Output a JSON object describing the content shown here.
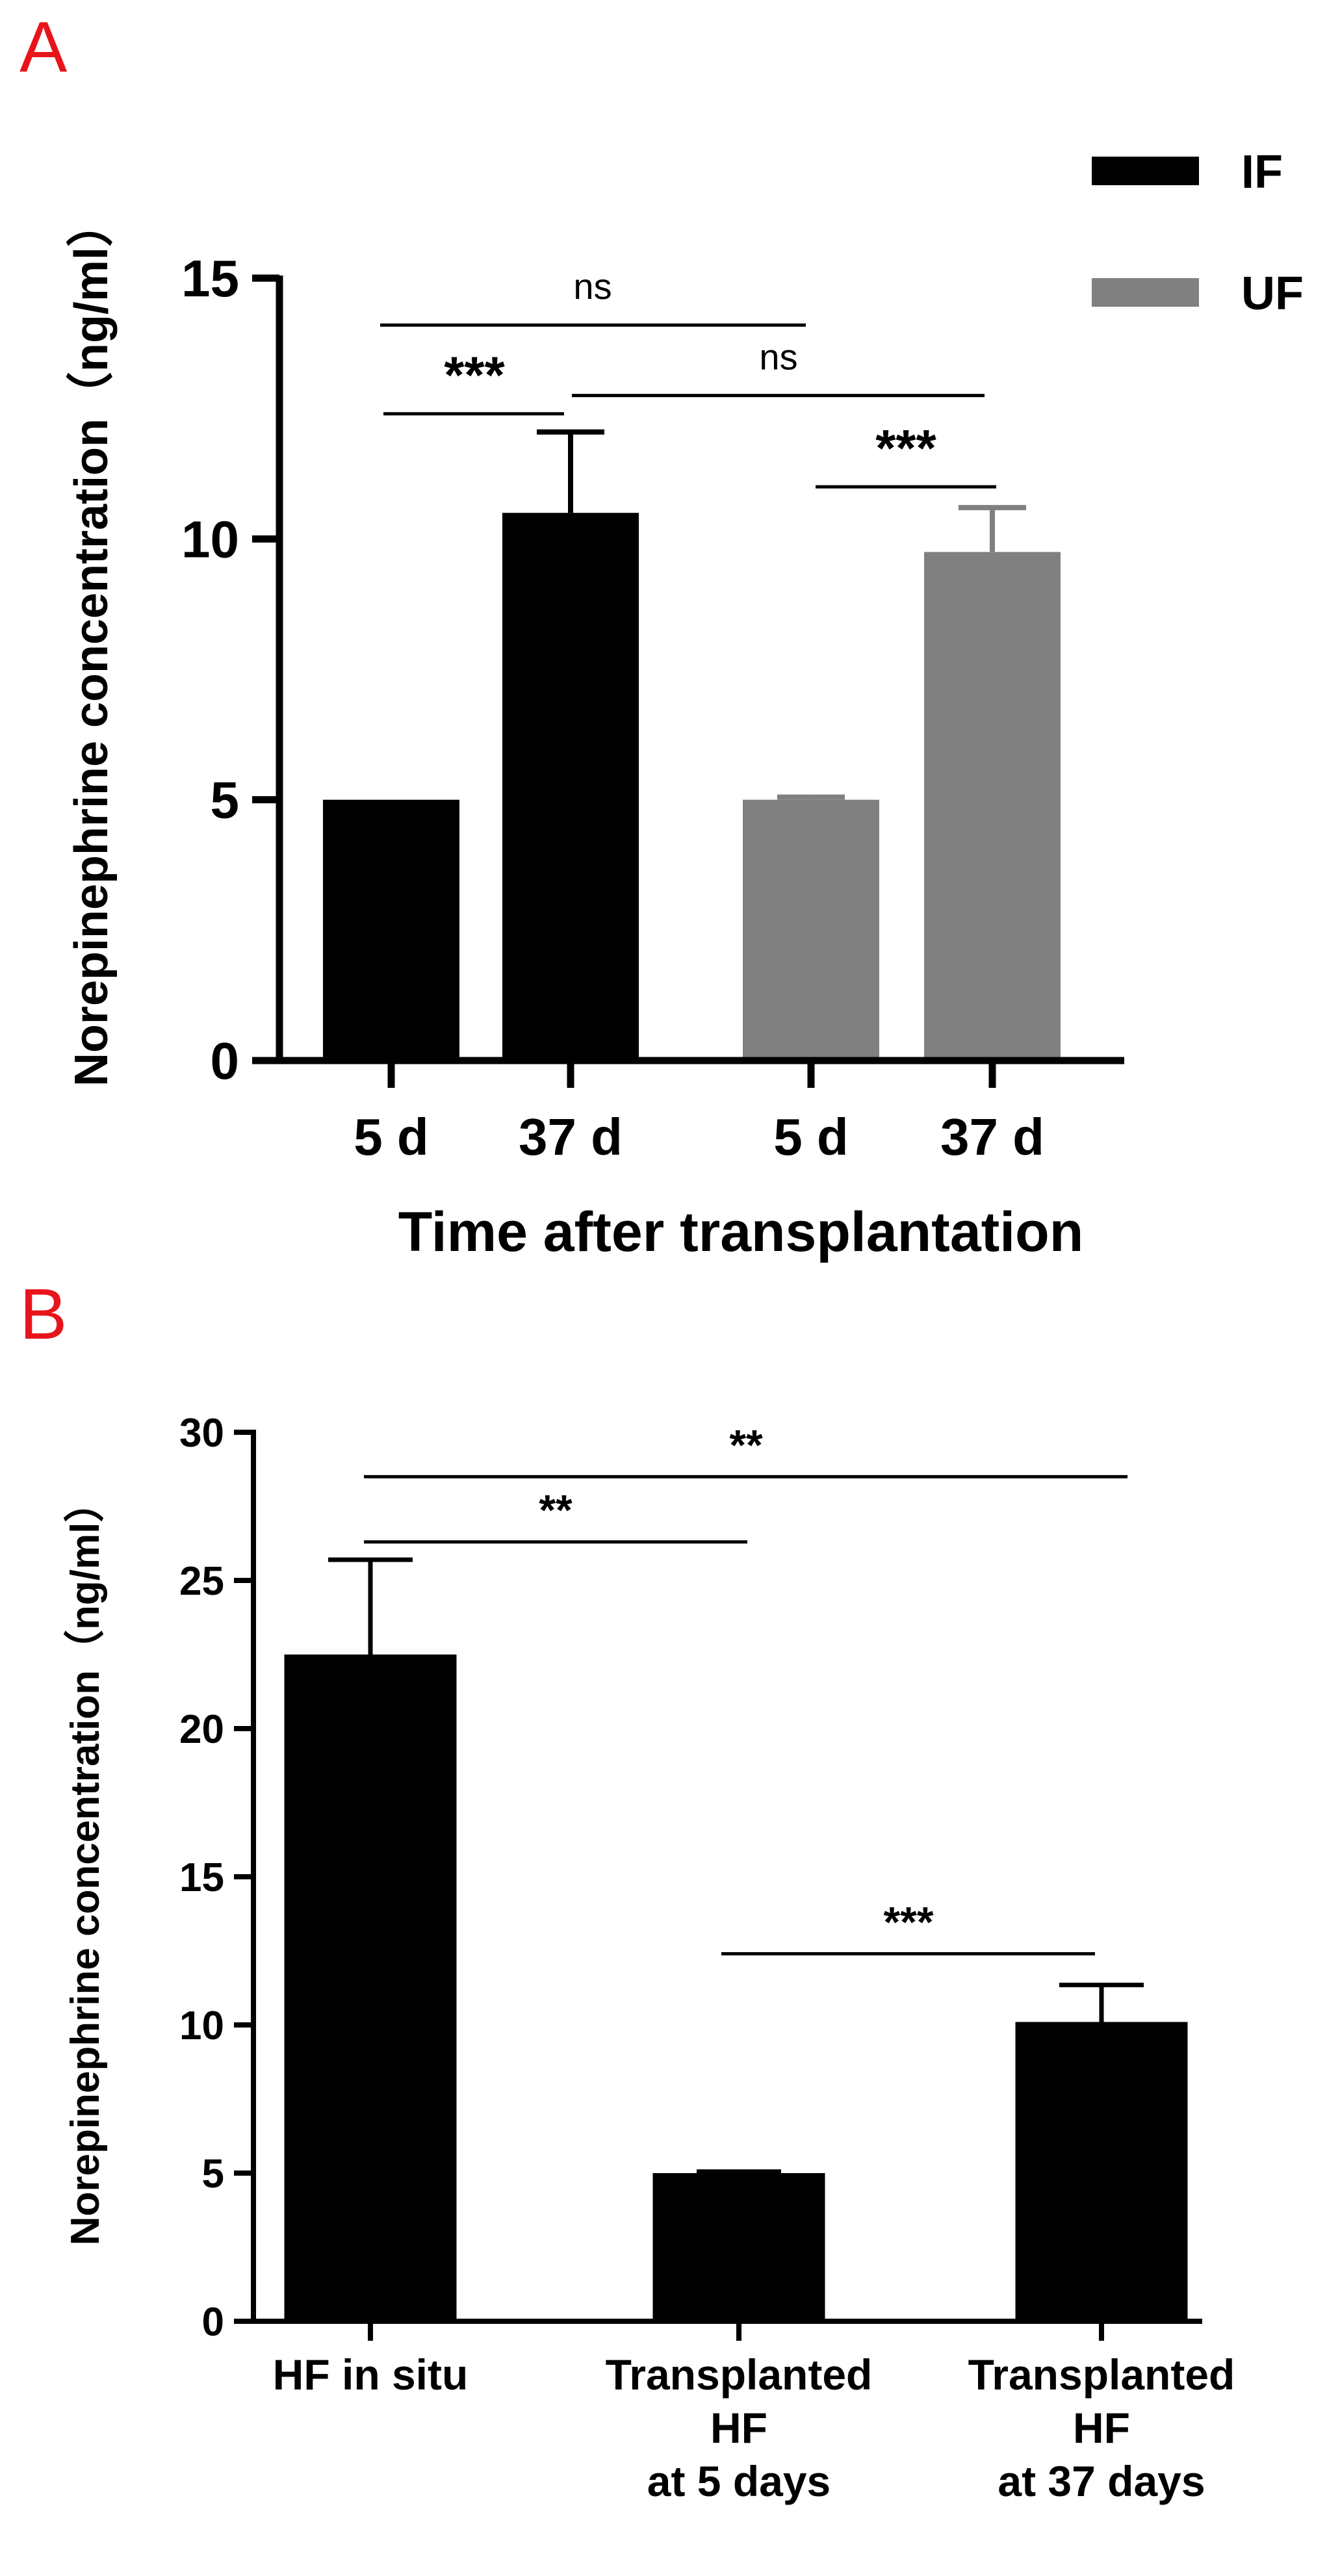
{
  "chart_data": [
    {
      "panel": "A",
      "type": "bar",
      "xlabel": "Time after transplantation",
      "ylabel": "Norepinephrine concentration（ng/ml）",
      "ylim": [
        0,
        15
      ],
      "yticks": [
        "0",
        "5",
        "10",
        "15"
      ],
      "legend": {
        "placement": "top-right",
        "entries": [
          "IF",
          "UF"
        ]
      },
      "colors": {
        "IF": "#000000",
        "UF": "#808080"
      },
      "grid": false,
      "bars": [
        {
          "label": "5 d",
          "series": "IF",
          "value": 5.0,
          "err": 0.0
        },
        {
          "label": "37 d",
          "series": "IF",
          "value": 10.5,
          "err": 1.55
        },
        {
          "label": "5 d",
          "series": "UF",
          "value": 5.0,
          "err": 0.05
        },
        {
          "label": "37 d",
          "series": "UF",
          "value": 9.75,
          "err": 0.85
        }
      ],
      "significance": [
        {
          "from": 0,
          "to": 2,
          "text": "ns",
          "y": 14.1
        },
        {
          "from": 1,
          "to": 3,
          "text": "ns",
          "y": 12.75
        },
        {
          "from": 0,
          "to": 1,
          "text": "***",
          "y": 12.4
        },
        {
          "from": 2,
          "to": 3,
          "text": "***",
          "y": 11.0
        }
      ]
    },
    {
      "panel": "B",
      "type": "bar",
      "xlabel": "",
      "ylabel": "Norepinephrine concentration（ng/ml）",
      "ylim": [
        0,
        30
      ],
      "yticks": [
        "0",
        "5",
        "10",
        "15",
        "20",
        "25",
        "30"
      ],
      "grid": false,
      "colors": {
        "bar": "#000000"
      },
      "bars": [
        {
          "label": [
            "HF in situ"
          ],
          "value": 22.5,
          "err": 3.2
        },
        {
          "label": [
            "Transplanted",
            "HF",
            "at 5 days"
          ],
          "value": 5.0,
          "err": 0.05
        },
        {
          "label": [
            "Transplanted",
            "HF",
            "at 37 days"
          ],
          "value": 10.1,
          "err": 1.25
        }
      ],
      "significance": [
        {
          "from": 0,
          "to": 2,
          "text": "**",
          "y": 28.5
        },
        {
          "from": 0,
          "to": 1,
          "text": "**",
          "y": 26.3
        },
        {
          "from": 1,
          "to": 2,
          "text": "***",
          "y": 12.4
        }
      ]
    }
  ]
}
